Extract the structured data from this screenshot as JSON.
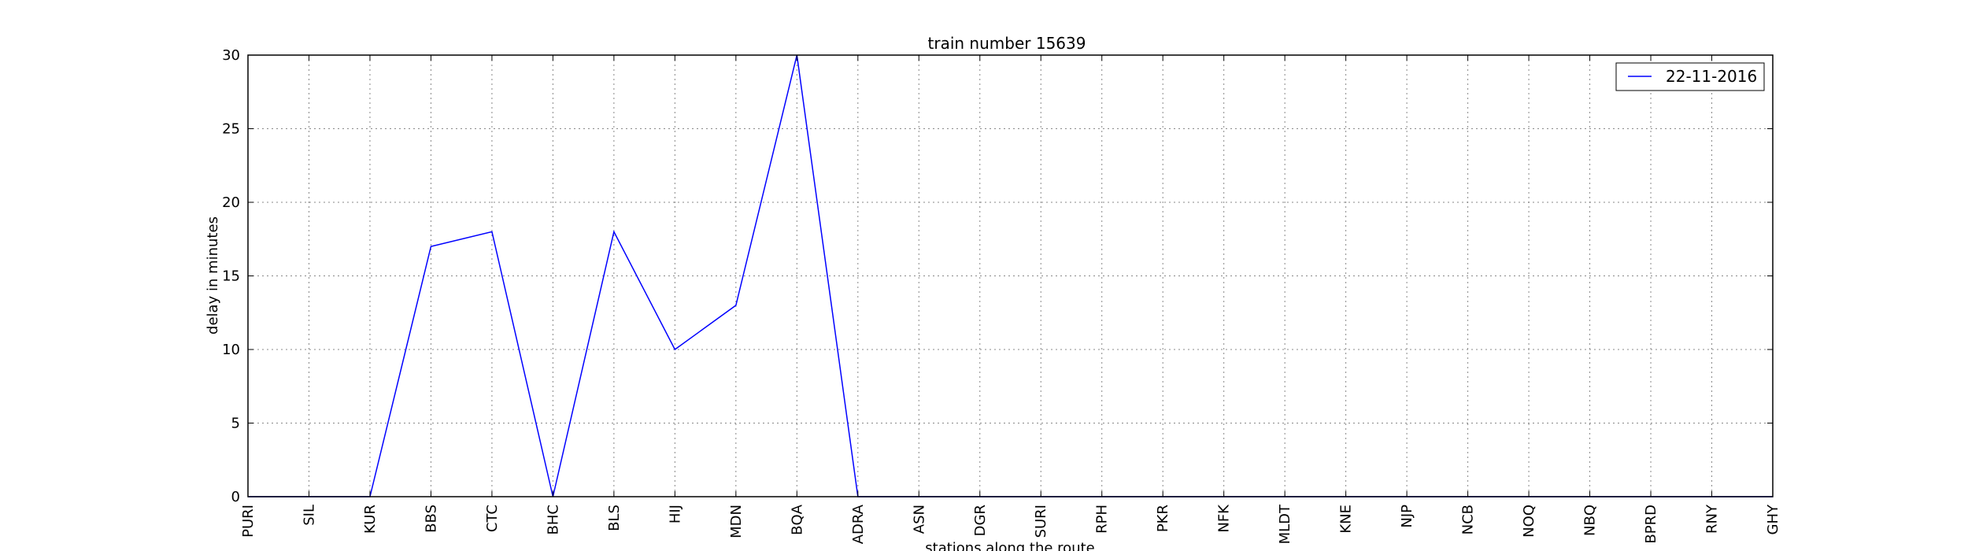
{
  "chart_data": {
    "type": "line",
    "title": "train number 15639",
    "xlabel": "stations along the route",
    "ylabel": "delay in minutes",
    "categories": [
      "PURI",
      "SIL",
      "KUR",
      "BBS",
      "CTC",
      "BHC",
      "BLS",
      "HIJ",
      "MDN",
      "BQA",
      "ADRA",
      "ASN",
      "DGR",
      "SURI",
      "RPH",
      "PKR",
      "NFK",
      "MLDT",
      "KNE",
      "NJP",
      "NCB",
      "NOQ",
      "NBQ",
      "BPRD",
      "RNY",
      "GHY"
    ],
    "series": [
      {
        "name": "22-11-2016",
        "color": "#0000ff",
        "values": [
          0,
          0,
          0,
          17,
          18,
          0,
          18,
          10,
          13,
          30,
          0,
          0,
          0,
          0,
          0,
          0,
          0,
          0,
          0,
          0,
          0,
          0,
          0,
          0,
          0,
          0
        ]
      }
    ],
    "ylim": [
      0,
      30
    ],
    "yticks": [
      0,
      5,
      10,
      15,
      20,
      25,
      30
    ],
    "grid": true,
    "legend_position": "top-right"
  }
}
